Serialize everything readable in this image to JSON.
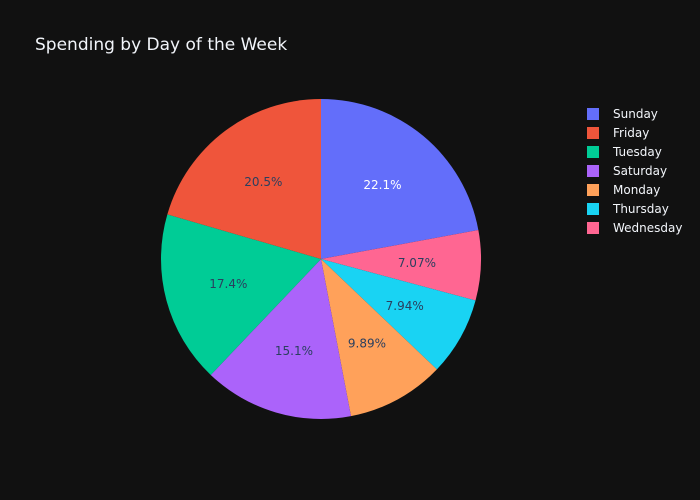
{
  "chart_data": {
    "type": "pie",
    "title": "Spending by Day of the Week",
    "legend_position": "top-right",
    "background": "#111111",
    "slices": [
      {
        "label": "Sunday",
        "percent": 22.1,
        "display": "22.1%",
        "color": "#636efa",
        "text_color": "#ffffff"
      },
      {
        "label": "Wednesday",
        "percent": 7.07,
        "display": "7.07%",
        "color": "#ff6692",
        "text_color": "#2a3f5f"
      },
      {
        "label": "Thursday",
        "percent": 7.94,
        "display": "7.94%",
        "color": "#19d3f3",
        "text_color": "#2a3f5f"
      },
      {
        "label": "Monday",
        "percent": 9.89,
        "display": "9.89%",
        "color": "#ffa15a",
        "text_color": "#2a3f5f"
      },
      {
        "label": "Saturday",
        "percent": 15.1,
        "display": "15.1%",
        "color": "#ab63fa",
        "text_color": "#2a3f5f"
      },
      {
        "label": "Tuesday",
        "percent": 17.4,
        "display": "17.4%",
        "color": "#00cc96",
        "text_color": "#2a3f5f"
      },
      {
        "label": "Friday",
        "percent": 20.5,
        "display": "20.5%",
        "color": "#ef553b",
        "text_color": "#2a3f5f"
      }
    ],
    "legend_order": [
      "Sunday",
      "Friday",
      "Tuesday",
      "Saturday",
      "Monday",
      "Thursday",
      "Wednesday"
    ]
  }
}
